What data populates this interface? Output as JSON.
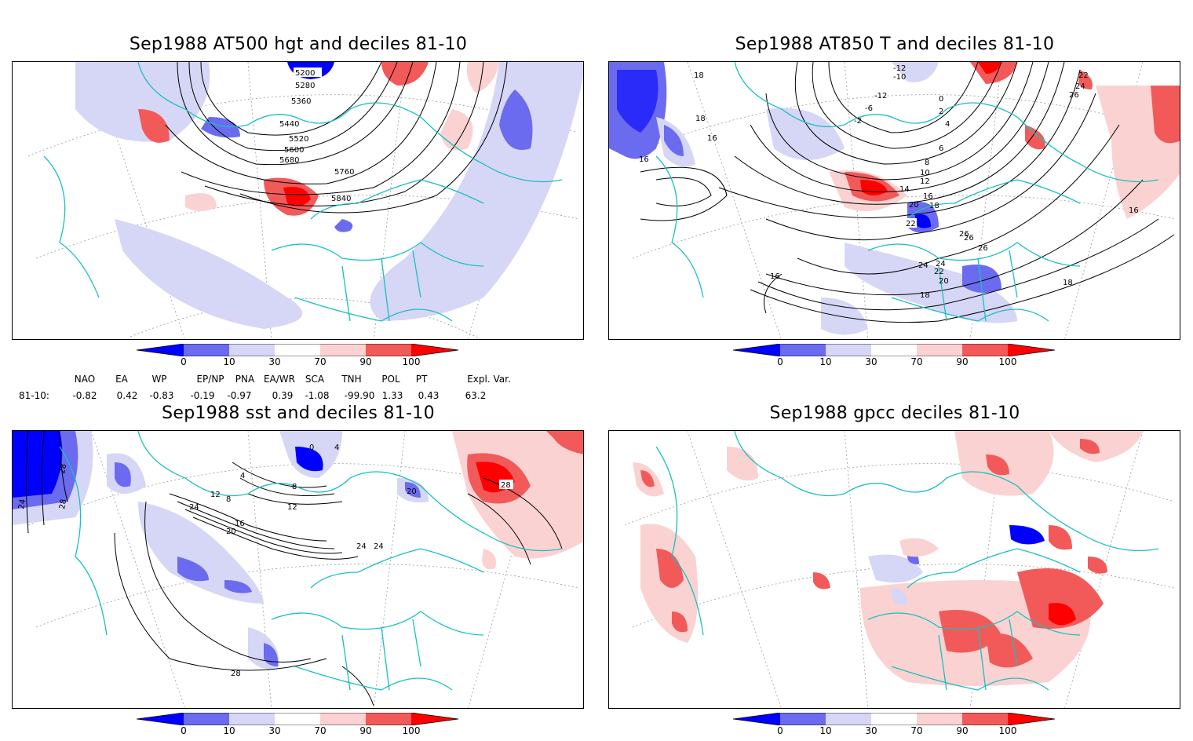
{
  "colorbar": {
    "ticks": [
      "0",
      "10",
      "30",
      "70",
      "90",
      "100"
    ],
    "colors": [
      "#0000ff",
      "#6b6bef",
      "#d6d6f6",
      "#ffffff",
      "#fbd2d2",
      "#f25a5a",
      "#ff0000"
    ]
  },
  "panels": [
    {
      "title": "Sep1988 AT500 hgt and deciles 81-10",
      "contour_labels": [
        "5200",
        "5280",
        "5360",
        "5440",
        "5520",
        "5600",
        "5680",
        "5760",
        "5840"
      ]
    },
    {
      "title": "Sep1988 AT850 T and deciles 81-10",
      "contour_labels": [
        "-12",
        "-10",
        "-12",
        "-6",
        "-2",
        "0",
        "2",
        "4",
        "6",
        "8",
        "10",
        "12",
        "14",
        "16",
        "18",
        "20",
        "22",
        "24",
        "26",
        "18",
        "16",
        "18",
        "16",
        "16",
        "18",
        "20",
        "22",
        "24",
        "26",
        "26",
        "22",
        "24",
        "26",
        "16",
        "18"
      ]
    },
    {
      "title": "Sep1988 sst and deciles 81-10",
      "contour_labels": [
        "28",
        "24",
        "28",
        "4",
        "0",
        "8",
        "12",
        "24",
        "16",
        "20",
        "12",
        "8",
        "4",
        "20",
        "24",
        "24",
        "28",
        "28"
      ]
    },
    {
      "title": "Sep1988 gpcc deciles 81-10",
      "contour_labels": []
    }
  ],
  "indices": {
    "headers": [
      "NAO",
      "EA",
      "WP",
      "EP/NP",
      "PNA",
      "EA/WR",
      "SCA",
      "TNH",
      "POL",
      "PT",
      "Expl. Var."
    ],
    "row_label": "81-10:",
    "values": [
      "-0.82",
      "0.42",
      "-0.83",
      "-0.19",
      "-0.97",
      "0.39",
      "-1.08",
      "-99.90",
      "1.33",
      "0.43",
      "63.2"
    ]
  }
}
